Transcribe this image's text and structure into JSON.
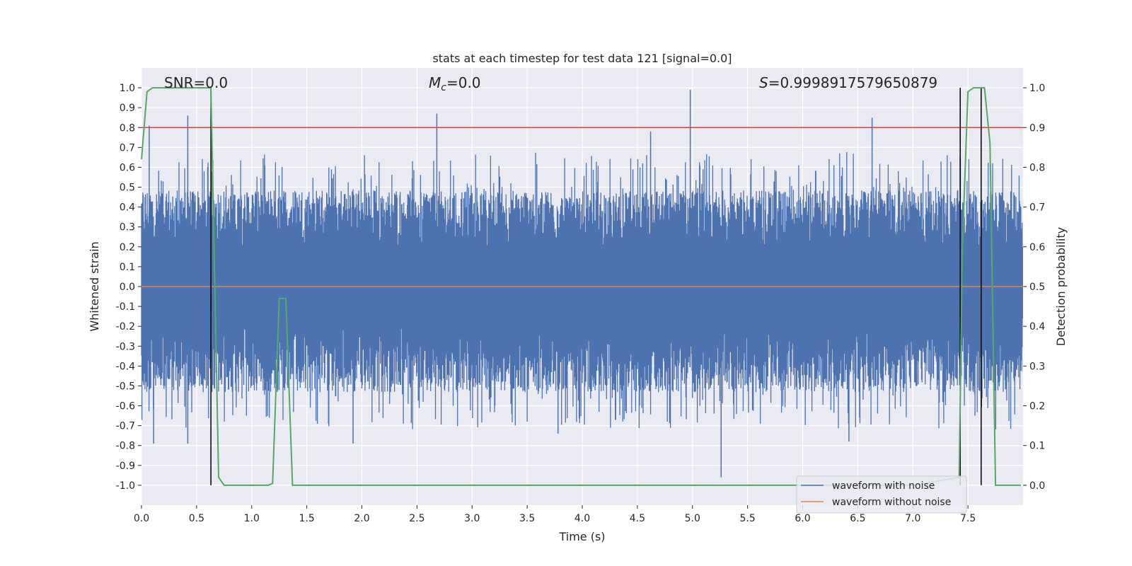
{
  "chart_data": {
    "type": "line",
    "title": "stats at each timestep for test data 121 [signal=0.0]",
    "xlabel": "Time (s)",
    "ylabel": "Whitened strain",
    "ylabel_right": "Detection probability",
    "xlim": [
      0.0,
      8.0
    ],
    "ylim": [
      -1.1,
      1.1
    ],
    "ylim_right": [
      -0.05,
      1.05
    ],
    "xticks": [
      "0.0",
      "0.5",
      "1.0",
      "1.5",
      "2.0",
      "2.5",
      "3.0",
      "3.5",
      "4.0",
      "4.5",
      "5.0",
      "5.5",
      "6.0",
      "6.5",
      "7.0",
      "7.5"
    ],
    "yticks": [
      "1.0",
      "0.9",
      "0.8",
      "0.7",
      "0.6",
      "0.5",
      "0.4",
      "0.3",
      "0.2",
      "0.1",
      "0.0",
      "-0.1",
      "-0.2",
      "-0.3",
      "-0.4",
      "-0.5",
      "-0.6",
      "-0.7",
      "-0.8",
      "-0.9",
      "-1.0"
    ],
    "yticks_right": [
      "1.0",
      "0.9",
      "0.8",
      "0.7",
      "0.6",
      "0.5",
      "0.4",
      "0.3",
      "0.2",
      "0.1",
      "0.0"
    ],
    "annotations": {
      "snr": "SNR=0.0",
      "mc_symbol": "M",
      "mc_sub": "c",
      "mc_value": "=0.0",
      "s_symbol": "S",
      "s_value": "=0.9998917579650879"
    },
    "threshold_right": 0.9,
    "vertical_markers": [
      0.63,
      7.43,
      7.62
    ],
    "waveform_with_noise": {
      "name": "waveform with noise",
      "color": "#4c72b0",
      "envelope_upper": 0.5,
      "envelope_lower": -0.55,
      "peaks": [
        {
          "t": 0.07,
          "v": 0.81
        },
        {
          "t": 0.42,
          "v": 0.86
        },
        {
          "t": 2.68,
          "v": 0.87
        },
        {
          "t": 4.98,
          "v": 0.99
        },
        {
          "t": 6.63,
          "v": 0.85
        },
        {
          "t": 4.62,
          "v": 0.78
        },
        {
          "t": 0.11,
          "v": -0.79
        },
        {
          "t": 0.42,
          "v": -0.79
        },
        {
          "t": 1.92,
          "v": -0.79
        },
        {
          "t": 5.26,
          "v": -0.96
        },
        {
          "t": 6.42,
          "v": -0.78
        },
        {
          "t": 3.78,
          "v": -0.74
        }
      ]
    },
    "waveform_without_noise": {
      "name": "waveform without noise",
      "color": "#dd8452",
      "value": 0.0
    },
    "detection_probability": {
      "color": "#55a868",
      "x": [
        0.0,
        0.05,
        0.1,
        0.15,
        0.2,
        0.3,
        0.4,
        0.5,
        0.6,
        0.63,
        0.7,
        0.75,
        0.8,
        0.9,
        1.0,
        1.1,
        1.15,
        1.19,
        1.25,
        1.31,
        1.37,
        1.5,
        2.0,
        3.0,
        4.0,
        5.0,
        6.0,
        7.0,
        7.42,
        7.45,
        7.5,
        7.55,
        7.6,
        7.65,
        7.7,
        7.75,
        7.8,
        7.9,
        7.98
      ],
      "y": [
        0.82,
        0.99,
        1.0,
        1.0,
        1.0,
        1.0,
        1.0,
        1.0,
        1.0,
        1.0,
        0.02,
        0.0,
        0.0,
        0.0,
        0.0,
        0.0,
        0.0,
        0.005,
        0.47,
        0.47,
        0.0,
        0.0,
        0.0,
        0.0,
        0.0,
        0.0,
        0.0,
        0.0,
        0.02,
        0.6,
        0.99,
        1.0,
        1.0,
        1.0,
        0.86,
        0.0,
        0.0,
        0.0,
        0.0
      ]
    },
    "legend": {
      "position": "lower-right",
      "entries": [
        {
          "name": "waveform with noise",
          "color": "#4c72b0"
        },
        {
          "name": "waveform without noise",
          "color": "#dd8452"
        }
      ]
    }
  }
}
